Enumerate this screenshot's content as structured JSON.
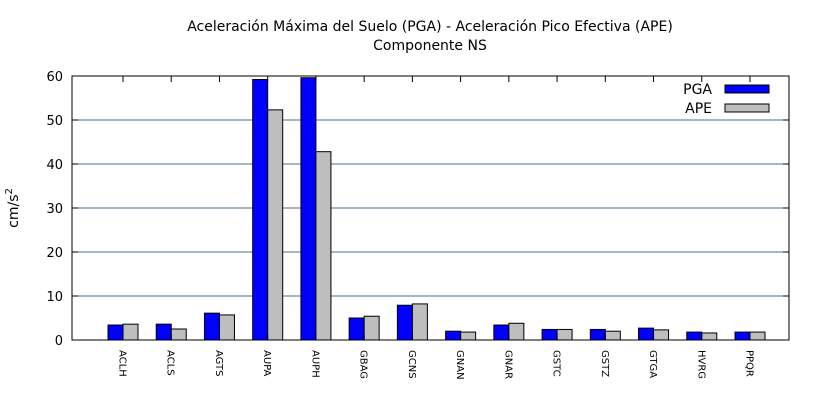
{
  "chart_data": {
    "type": "bar",
    "title": "Aceleración Máxima del Suelo (PGA) -  Aceleración Pico Efectiva (APE)",
    "subtitle": "Componente NS",
    "xlabel": "",
    "ylabel": "cm/s",
    "ylabel_sup": "2",
    "ylim": [
      0,
      60
    ],
    "yticks": [
      0,
      10,
      20,
      30,
      40,
      50,
      60
    ],
    "grid": true,
    "legend_position": "top-right",
    "categories": [
      "ACLH",
      "ACLS",
      "AGTS",
      "AUPA",
      "AUPH",
      "GBAG",
      "GCNS",
      "GNAN",
      "GNAR",
      "GSTC",
      "GSTZ",
      "GTGA",
      "HVRG",
      "PPQR"
    ],
    "series": [
      {
        "name": "PGA",
        "color": "#0000ff",
        "values": [
          3.4,
          3.6,
          6.1,
          59.2,
          59.6,
          5.0,
          7.9,
          2.0,
          3.4,
          2.4,
          2.4,
          2.7,
          1.8,
          1.8
        ]
      },
      {
        "name": "APE",
        "color": "#bebebe",
        "values": [
          3.6,
          2.5,
          5.7,
          52.3,
          42.8,
          5.4,
          8.2,
          1.8,
          3.8,
          2.4,
          2.0,
          2.3,
          1.6,
          1.8
        ]
      }
    ]
  }
}
